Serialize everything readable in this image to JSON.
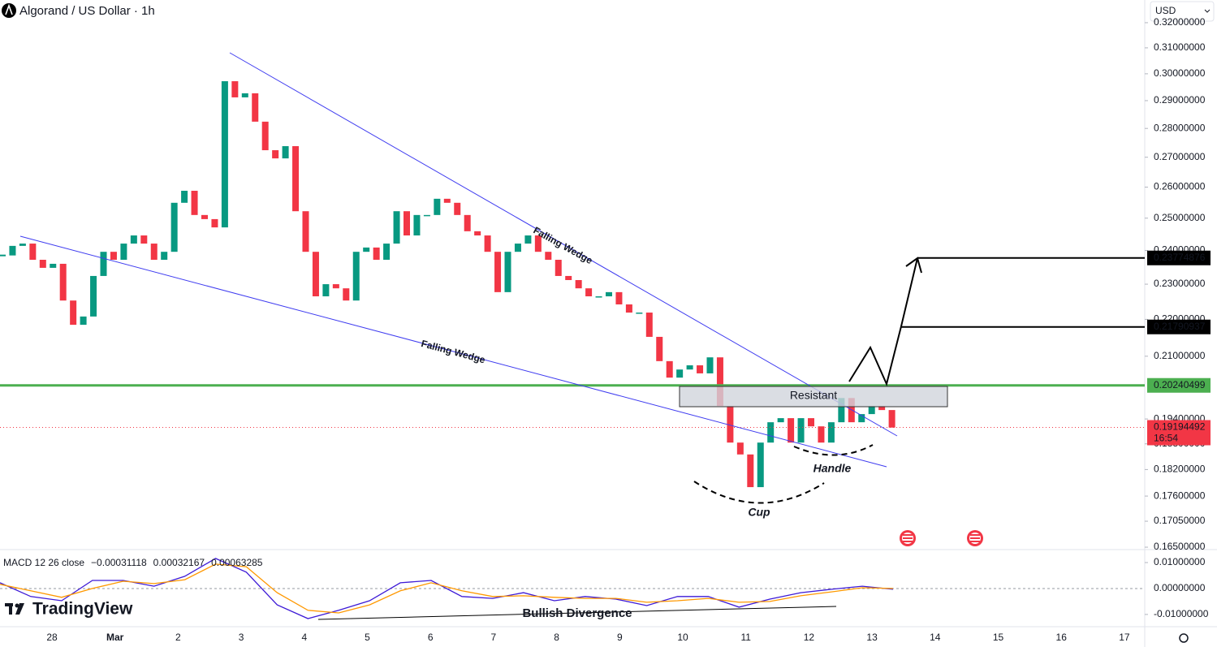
{
  "chart_data": [
    {
      "type": "candlestick",
      "title": "Algorand / US Dollar · 1h",
      "currency": "USD",
      "log_scale": true,
      "up_color": "#089981",
      "down_color": "#f23645",
      "closes": [
        0.2385,
        0.2414,
        0.2421,
        0.2372,
        0.2348,
        0.236,
        0.2253,
        0.2185,
        0.2208,
        0.2324,
        0.2396,
        0.2372,
        0.2421,
        0.2446,
        0.2421,
        0.2372,
        0.2396,
        0.2549,
        0.2588,
        0.251,
        0.2497,
        0.2471,
        0.2972,
        0.2912,
        0.2927,
        0.2824,
        0.2724,
        0.2696,
        0.2738,
        0.2522,
        0.2396,
        0.2265,
        0.23,
        0.2288,
        0.2253,
        0.2396,
        0.2409,
        0.2372,
        0.2421,
        0.2522,
        0.2446,
        0.251,
        0.251,
        0.2562,
        0.2549,
        0.251,
        0.2459,
        0.2446,
        0.2396,
        0.2277,
        0.2396,
        0.2421,
        0.2446,
        0.2396,
        0.2372,
        0.2324,
        0.2312,
        0.2288,
        0.2265,
        0.2265,
        0.2277,
        0.2242,
        0.2219,
        0.2219,
        0.2152,
        0.2087,
        0.2044,
        0.2065,
        0.2076,
        0.2055,
        0.2097,
        0.1972,
        0.1883,
        0.1855,
        0.178,
        0.1883,
        0.1932,
        0.1942,
        0.1883,
        0.1942,
        0.1922,
        0.1883,
        0.1932,
        0.1992,
        0.1932,
        0.1952,
        0.1972,
        0.1962,
        0.1919
      ],
      "x_labels": [
        "28",
        "Mar",
        "2",
        "3",
        "4",
        "5",
        "6",
        "7",
        "8",
        "9",
        "10",
        "11",
        "12",
        "13",
        "14",
        "15",
        "16",
        "17"
      ],
      "ylim": [
        0.1645,
        0.3293
      ],
      "yticks": [
        {
          "value": 0.32,
          "label": "0.32000000"
        },
        {
          "value": 0.31,
          "label": "0.31000000"
        },
        {
          "value": 0.3,
          "label": "0.30000000"
        },
        {
          "value": 0.29,
          "label": "0.29000000"
        },
        {
          "value": 0.28,
          "label": "0.28000000"
        },
        {
          "value": 0.27,
          "label": "0.27000000"
        },
        {
          "value": 0.26,
          "label": "0.26000000"
        },
        {
          "value": 0.25,
          "label": "0.25000000"
        },
        {
          "value": 0.24,
          "label": "0.24000000"
        },
        {
          "value": 0.23,
          "label": "0.23000000"
        },
        {
          "value": 0.22,
          "label": "0.22000000"
        },
        {
          "value": 0.21,
          "label": "0.21000000"
        },
        {
          "value": 0.194,
          "label": "0.19400000"
        },
        {
          "value": 0.188,
          "label": "0.18800000"
        },
        {
          "value": 0.182,
          "label": "0.18200000"
        },
        {
          "value": 0.176,
          "label": "0.17600000"
        },
        {
          "value": 0.1705,
          "label": "0.17050000"
        },
        {
          "value": 0.165,
          "label": "0.16500000"
        }
      ],
      "price_labels": [
        {
          "value": 0.23774876,
          "color": "#000000"
        },
        {
          "value": 0.21790937,
          "color": "#000000"
        },
        {
          "value": 0.20240499,
          "color": "#4caf50"
        },
        {
          "value": 0.19194492,
          "color": "#f23645"
        }
      ],
      "countdown": "16:54",
      "annotations": [
        "Falling Wedge",
        "Falling Wedge",
        "Resistant",
        "Handle",
        "Cup",
        "Bullish Divergence"
      ],
      "watermark": "TradingView"
    },
    {
      "type": "line",
      "title": "MACD 12 26 close",
      "legend_values": [
        {
          "value": -0.00031118,
          "label": "−0.00031118",
          "color": "#f23645"
        },
        {
          "value": 0.00032167,
          "label": "0.00032167",
          "color": "#3d1ad6"
        },
        {
          "value": 0.00063285,
          "label": "0.00063285",
          "color": "#ff9800"
        }
      ],
      "series": [
        {
          "color": "#3d1ad6",
          "values": [
            0.0022,
            -0.0031,
            -0.0047,
            0.0031,
            0.0031,
            0.0009,
            0.0047,
            0.0116,
            0.0063,
            -0.0063,
            -0.0116,
            -0.0084,
            -0.0047,
            0.0022,
            0.0031,
            -0.0031,
            -0.0038,
            -0.0016,
            -0.0047,
            -0.0031,
            -0.0041,
            -0.0066,
            -0.0031,
            -0.0031,
            -0.0072,
            -0.0041,
            -0.0016,
            -0.0003,
            0.0009,
            -0.0003
          ]
        },
        {
          "color": "#ff9800",
          "values": [
            0.0016,
            -0.0009,
            -0.0034,
            0,
            0.0028,
            0.0019,
            0.0034,
            0.0094,
            0.0084,
            -0.0016,
            -0.0084,
            -0.0094,
            -0.0063,
            -0.0009,
            0.0022,
            -0.0009,
            -0.0031,
            -0.0028,
            -0.0034,
            -0.0038,
            -0.0038,
            -0.0053,
            -0.0047,
            -0.0038,
            -0.0053,
            -0.005,
            -0.0028,
            -0.0013,
            0.0003,
            0
          ]
        }
      ],
      "ylim": [
        -0.0141,
        0.015
      ],
      "yticks": [
        {
          "value": 0.01,
          "label": "0.01000000"
        },
        {
          "value": 0,
          "label": "0.00000000"
        },
        {
          "value": -0.01,
          "label": "-0.01000000"
        }
      ]
    }
  ]
}
